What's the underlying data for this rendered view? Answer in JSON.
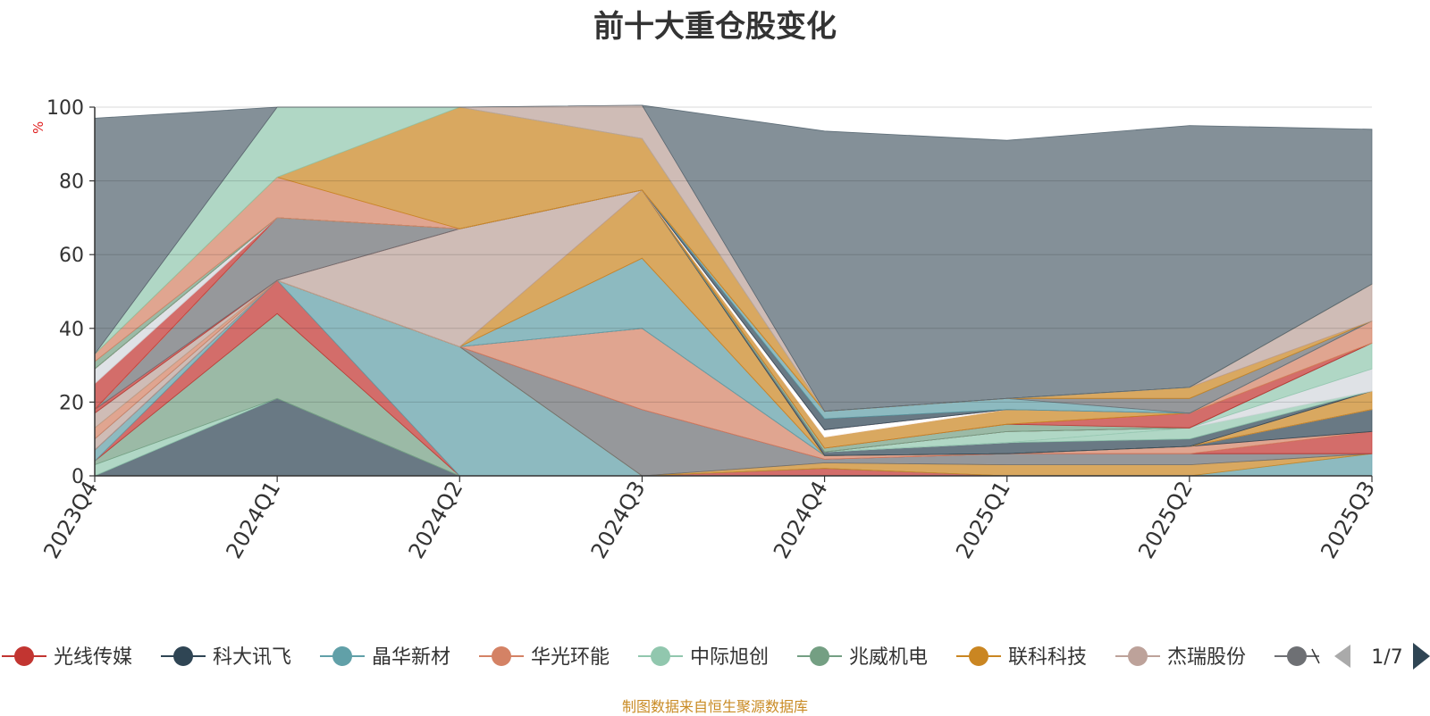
{
  "chart_data": {
    "type": "area",
    "stacked": true,
    "title": "前十大重仓股变化",
    "ylabel": "%",
    "ylim": [
      0,
      100
    ],
    "yticks": [
      "0",
      "20",
      "40",
      "60",
      "80",
      "100"
    ],
    "x": [
      "2023Q4",
      "2024Q1",
      "2024Q2",
      "2024Q3",
      "2024Q4",
      "2025Q1",
      "2025Q2",
      "2025Q3"
    ],
    "grid": true,
    "legend_position": "bottom",
    "legend_page": "1/7",
    "legend": [
      {
        "name": "光线传媒",
        "color": "#c23531"
      },
      {
        "name": "科大讯飞",
        "color": "#2f4554"
      },
      {
        "name": "晶华新材",
        "color": "#61a0a8"
      },
      {
        "name": "华光环能",
        "color": "#d48265"
      },
      {
        "name": "中际旭创",
        "color": "#91c7ae"
      },
      {
        "name": "兆威机电",
        "color": "#749f83"
      },
      {
        "name": "联科科技",
        "color": "#ca8622"
      },
      {
        "name": "杰瑞股份",
        "color": "#bda29a"
      },
      {
        "name": "",
        "color": "#6e7074"
      }
    ],
    "series": [
      {
        "color": "#2f4554",
        "values": [
          0,
          21,
          0,
          0,
          0,
          0,
          0,
          0
        ]
      },
      {
        "color": "#91c7ae",
        "values": [
          3,
          0,
          0,
          0,
          0,
          0,
          0,
          0
        ]
      },
      {
        "color": "#749f83",
        "values": [
          1,
          23,
          0,
          0,
          0,
          0,
          0,
          0
        ]
      },
      {
        "color": "#c23531",
        "values": [
          0,
          9,
          0,
          0,
          2,
          0,
          0,
          0
        ]
      },
      {
        "color": "#61a0a8",
        "values": [
          3,
          0,
          35,
          0,
          0,
          0,
          0,
          6
        ]
      },
      {
        "color": "#ca8622",
        "values": [
          0,
          0,
          0,
          0,
          1.5,
          3,
          3,
          0
        ]
      },
      {
        "color": "#6e7074",
        "values": [
          0,
          0,
          0,
          18,
          1,
          3,
          3,
          0
        ]
      },
      {
        "color": "#c23531",
        "values": [
          0,
          0,
          0,
          0,
          0,
          0,
          0,
          6
        ]
      },
      {
        "color": "#d48265",
        "values": [
          0,
          0,
          0,
          22,
          1,
          0,
          2,
          0
        ]
      },
      {
        "color": "#2f4554",
        "values": [
          0,
          0,
          0,
          0,
          0,
          0,
          0,
          6
        ]
      },
      {
        "color": "#bda29a",
        "values": [
          3,
          0,
          0,
          0,
          0,
          0,
          0,
          0
        ]
      },
      {
        "color": "#61a0a8",
        "values": [
          0,
          0,
          0,
          19,
          0,
          0,
          0,
          0
        ]
      },
      {
        "color": "#d48265",
        "values": [
          3,
          0,
          0,
          0,
          0,
          0,
          0,
          0
        ]
      },
      {
        "color": "#ca8622",
        "values": [
          0,
          0,
          0,
          18.5,
          0,
          0,
          0,
          5
        ]
      },
      {
        "color": "#bda29a",
        "values": [
          4,
          0,
          32,
          0,
          0,
          0,
          0,
          0
        ]
      },
      {
        "color": "#2f4554",
        "values": [
          0,
          0,
          0,
          0,
          1,
          3,
          2,
          0
        ]
      },
      {
        "color": "#91c7ae",
        "values": [
          0,
          0,
          0,
          0,
          0,
          0,
          3,
          0
        ]
      },
      {
        "color": "#d3d7dc",
        "values": [
          0,
          0,
          0,
          0,
          0,
          0,
          0,
          6
        ]
      },
      {
        "color": "#91c7ae",
        "values": [
          0,
          0,
          0,
          0,
          0,
          3,
          0,
          7
        ]
      },
      {
        "color": "#c23531",
        "values": [
          1,
          0,
          0,
          0,
          0,
          0,
          0,
          0
        ]
      },
      {
        "color": "#6e7074",
        "values": [
          0,
          17,
          0,
          0,
          0,
          0,
          0,
          0
        ]
      },
      {
        "color": "#749f83",
        "values": [
          0,
          0,
          0,
          0,
          1,
          2,
          0,
          0
        ]
      },
      {
        "color": "#c23531",
        "values": [
          0,
          0,
          0,
          0,
          0,
          0,
          4,
          0
        ]
      },
      {
        "color": "#ca8622",
        "values": [
          0,
          0,
          0,
          0,
          3,
          4,
          0,
          0
        ]
      },
      {
        "color": "#d48265",
        "values": [
          0,
          0,
          0,
          0,
          0,
          0,
          0,
          6
        ]
      },
      {
        "color": "#ffffff",
        "values": [
          0,
          0,
          0,
          0,
          2,
          0,
          0,
          0
        ]
      },
      {
        "color": "#c23531",
        "values": [
          7,
          0,
          0,
          0,
          0,
          0,
          0,
          0
        ]
      },
      {
        "color": "#d3d7dc",
        "values": [
          4,
          0,
          0,
          0,
          0,
          0,
          0,
          0
        ]
      },
      {
        "color": "#2f4554",
        "values": [
          0,
          0,
          0,
          0,
          3,
          0,
          0,
          0
        ]
      },
      {
        "color": "#61a0a8",
        "values": [
          0,
          0,
          0,
          0,
          2,
          3,
          0,
          0
        ]
      },
      {
        "color": "#6e7074",
        "values": [
          0,
          0,
          0,
          0,
          0,
          0,
          4,
          0
        ]
      },
      {
        "color": "#ca8622",
        "values": [
          0,
          0,
          0,
          0,
          0,
          0,
          3,
          0
        ]
      },
      {
        "color": "#bda29a",
        "values": [
          0,
          0,
          0,
          0,
          0,
          0,
          0,
          10
        ]
      },
      {
        "color": "#749f83",
        "values": [
          2,
          0,
          0,
          0,
          0,
          0,
          0,
          0
        ]
      },
      {
        "color": "#d48265",
        "values": [
          2,
          11,
          0,
          0,
          0,
          0,
          0,
          0
        ]
      },
      {
        "color": "#ca8622",
        "values": [
          0,
          0,
          33,
          14,
          0,
          0,
          0,
          0
        ]
      },
      {
        "color": "#91c7ae",
        "values": [
          0,
          19,
          0,
          0,
          0,
          0,
          0,
          0
        ]
      },
      {
        "color": "#bda29a",
        "values": [
          0,
          0,
          0,
          9,
          0,
          0,
          0,
          0
        ]
      },
      {
        "color": "#546570",
        "values": [
          64,
          0,
          0,
          0,
          76,
          70,
          71,
          42
        ]
      }
    ]
  },
  "source_note": "制图数据来自恒生聚源数据库"
}
